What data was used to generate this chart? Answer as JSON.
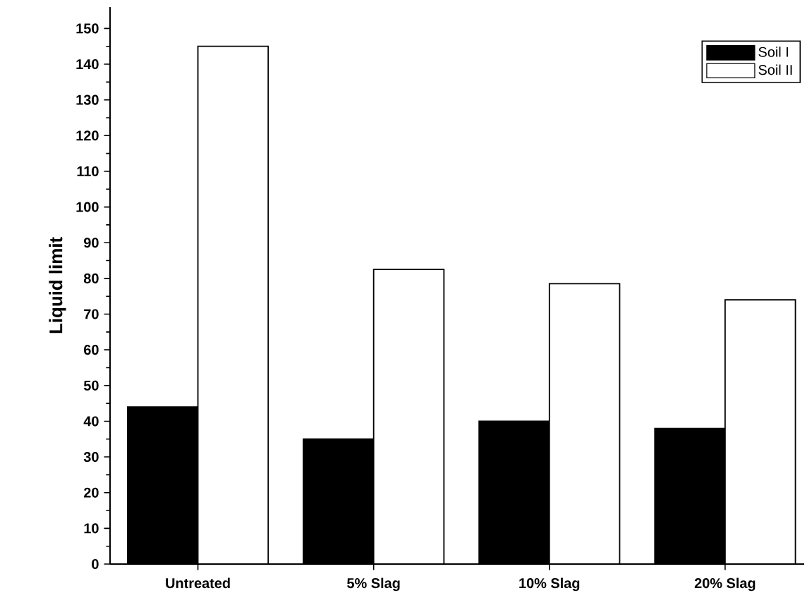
{
  "chart_data": {
    "type": "bar",
    "ylabel": "Liquid limit",
    "categories": [
      "Untreated",
      "5% Slag",
      "10% Slag",
      "20% Slag"
    ],
    "series": [
      {
        "name": "Soil I",
        "color": "#000000",
        "values": [
          44,
          35,
          40,
          38
        ]
      },
      {
        "name": "Soil II",
        "color": "#ffffff",
        "values": [
          145,
          82.5,
          78.5,
          74
        ]
      }
    ],
    "ylim": [
      0,
      156
    ],
    "yticks": [
      0,
      10,
      20,
      30,
      40,
      50,
      60,
      70,
      80,
      90,
      100,
      110,
      120,
      130,
      140,
      150
    ],
    "legend": "top right",
    "grid": false
  }
}
